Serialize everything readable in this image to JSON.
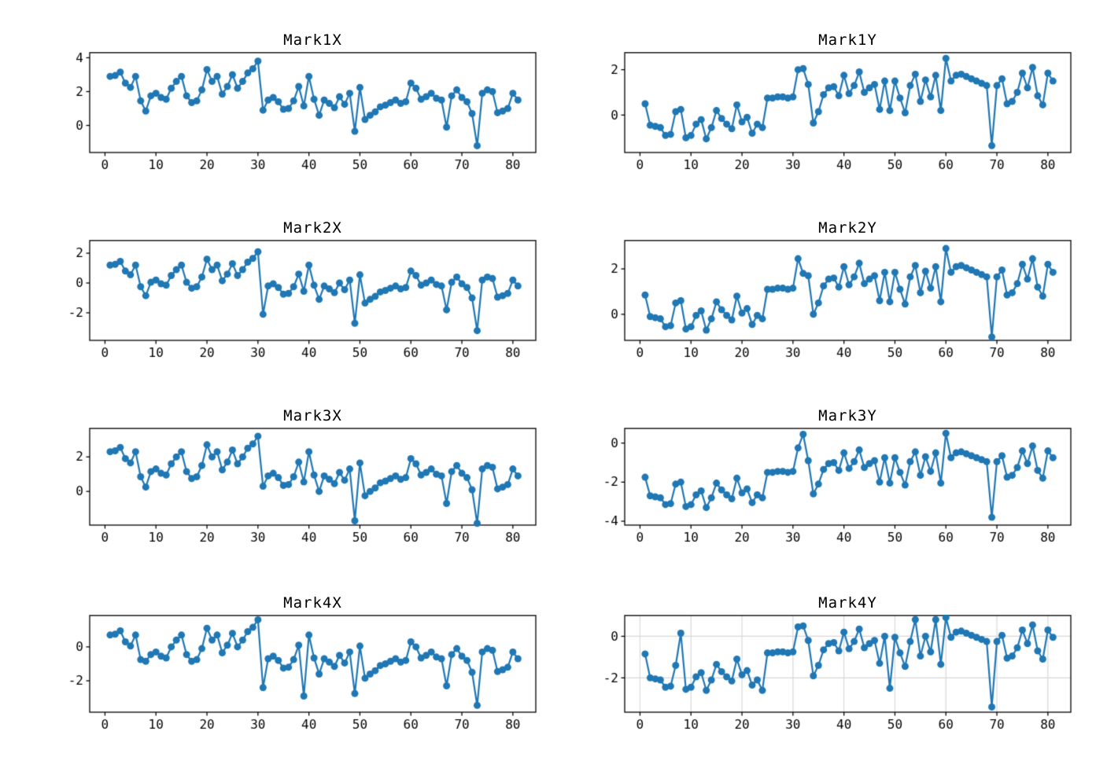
{
  "page": {
    "background": "#ffffff"
  },
  "chart_data": {
    "type": "line",
    "marker": "circle",
    "line_color": "#1f77b4",
    "axis_color": "#000000",
    "grid_color": "#d8d8d8",
    "x_ticks": [
      0,
      10,
      20,
      30,
      40,
      50,
      60,
      70,
      80
    ],
    "x_lim": [
      -3,
      84.5
    ],
    "x_start": 1,
    "x_step": 1,
    "legend": "none",
    "charts": [
      {
        "title": "Mark1X",
        "y_ticks": [
          0,
          2,
          4
        ],
        "y_lim": [
          -1.6,
          4.3
        ],
        "grid": false,
        "values": [
          2.9,
          2.95,
          3.15,
          2.5,
          2.25,
          2.9,
          1.45,
          0.85,
          1.75,
          1.9,
          1.65,
          1.55,
          2.2,
          2.6,
          2.9,
          1.75,
          1.35,
          1.45,
          2.1,
          3.3,
          2.6,
          2.9,
          1.85,
          2.3,
          3.0,
          2.2,
          2.6,
          3.1,
          3.35,
          3.8,
          0.9,
          1.5,
          1.65,
          1.4,
          0.95,
          1.0,
          1.45,
          2.3,
          1.15,
          2.9,
          1.55,
          0.6,
          1.5,
          1.3,
          1.05,
          1.7,
          1.25,
          1.9,
          -0.35,
          2.25,
          0.35,
          0.6,
          0.8,
          1.1,
          1.2,
          1.35,
          1.5,
          1.3,
          1.4,
          2.5,
          2.2,
          1.55,
          1.7,
          1.9,
          1.6,
          1.5,
          -0.1,
          1.75,
          2.1,
          1.65,
          1.4,
          0.7,
          -1.2,
          1.9,
          2.1,
          2.0,
          0.75,
          0.85,
          1.0,
          1.9,
          1.5
        ]
      },
      {
        "title": "Mark1Y",
        "y_ticks": [
          0,
          2
        ],
        "y_lim": [
          -1.65,
          2.75
        ],
        "grid": false,
        "values": [
          0.5,
          -0.45,
          -0.5,
          -0.55,
          -0.9,
          -0.85,
          0.15,
          0.25,
          -1.0,
          -0.9,
          -0.4,
          -0.2,
          -1.05,
          -0.55,
          0.2,
          -0.15,
          -0.4,
          -0.6,
          0.45,
          -0.3,
          -0.1,
          -0.8,
          -0.4,
          -0.55,
          0.75,
          0.75,
          0.8,
          0.8,
          0.75,
          0.8,
          2.0,
          2.05,
          1.35,
          -0.35,
          0.15,
          0.9,
          1.2,
          1.25,
          0.85,
          1.75,
          0.95,
          1.3,
          1.9,
          1.0,
          1.2,
          1.35,
          0.25,
          1.5,
          0.2,
          1.5,
          0.75,
          0.1,
          1.3,
          1.8,
          0.6,
          1.55,
          0.8,
          1.75,
          0.2,
          2.5,
          1.5,
          1.75,
          1.8,
          1.7,
          1.6,
          1.5,
          1.4,
          1.3,
          -1.35,
          1.3,
          1.6,
          0.5,
          0.6,
          1.0,
          1.85,
          1.2,
          2.1,
          0.85,
          0.45,
          1.85,
          1.5
        ]
      },
      {
        "title": "Mark2X",
        "y_ticks": [
          -2,
          0,
          2
        ],
        "y_lim": [
          -3.85,
          2.85
        ],
        "grid": false,
        "values": [
          1.2,
          1.25,
          1.45,
          0.8,
          0.55,
          1.2,
          -0.25,
          -0.85,
          0.05,
          0.2,
          -0.05,
          -0.15,
          0.5,
          0.9,
          1.2,
          0.05,
          -0.35,
          -0.25,
          0.4,
          1.6,
          0.9,
          1.2,
          0.15,
          0.6,
          1.3,
          0.5,
          0.9,
          1.4,
          1.65,
          2.1,
          -2.1,
          -0.2,
          -0.05,
          -0.3,
          -0.75,
          -0.7,
          -0.25,
          0.6,
          -0.55,
          1.2,
          -0.15,
          -1.1,
          -0.2,
          -0.4,
          -0.65,
          0.0,
          -0.45,
          0.2,
          -2.7,
          0.55,
          -1.35,
          -1.1,
          -0.9,
          -0.6,
          -0.5,
          -0.35,
          -0.2,
          -0.4,
          -0.3,
          0.8,
          0.5,
          -0.15,
          0.0,
          0.2,
          -0.1,
          -0.2,
          -1.8,
          0.05,
          0.4,
          -0.05,
          -0.3,
          -1.0,
          -3.2,
          0.2,
          0.4,
          0.3,
          -0.95,
          -0.85,
          -0.7,
          0.2,
          -0.2
        ]
      },
      {
        "title": "Mark2Y",
        "y_ticks": [
          0,
          2
        ],
        "y_lim": [
          -1.15,
          3.25
        ],
        "grid": false,
        "values": [
          0.85,
          -0.1,
          -0.15,
          -0.2,
          -0.55,
          -0.5,
          0.5,
          0.6,
          -0.65,
          -0.55,
          -0.05,
          0.15,
          -0.7,
          -0.2,
          0.55,
          0.2,
          -0.05,
          -0.25,
          0.8,
          0.05,
          0.25,
          -0.45,
          -0.05,
          -0.2,
          1.1,
          1.1,
          1.15,
          1.15,
          1.1,
          1.15,
          2.45,
          1.8,
          1.7,
          0.0,
          0.5,
          1.25,
          1.55,
          1.6,
          1.2,
          2.1,
          1.3,
          1.65,
          2.25,
          1.35,
          1.55,
          1.7,
          0.6,
          1.85,
          0.55,
          1.85,
          1.1,
          0.45,
          1.65,
          2.15,
          0.95,
          1.9,
          1.15,
          2.1,
          0.55,
          2.9,
          1.85,
          2.1,
          2.15,
          2.05,
          1.95,
          1.85,
          1.75,
          1.65,
          -1.0,
          1.65,
          1.95,
          0.85,
          0.95,
          1.35,
          2.2,
          1.55,
          2.45,
          1.2,
          0.8,
          2.2,
          1.85
        ]
      },
      {
        "title": "Mark3X",
        "y_ticks": [
          0,
          2
        ],
        "y_lim": [
          -1.95,
          3.65
        ],
        "grid": false,
        "values": [
          2.3,
          2.35,
          2.55,
          1.9,
          1.65,
          2.3,
          0.85,
          0.25,
          1.15,
          1.3,
          1.05,
          0.95,
          1.6,
          2.0,
          2.3,
          1.15,
          0.75,
          0.85,
          1.5,
          2.7,
          2.0,
          2.3,
          1.25,
          1.7,
          2.4,
          1.6,
          2.0,
          2.5,
          2.75,
          3.2,
          0.3,
          0.9,
          1.05,
          0.8,
          0.35,
          0.4,
          0.85,
          1.7,
          0.55,
          2.3,
          0.95,
          0.0,
          0.9,
          0.7,
          0.45,
          1.1,
          0.65,
          1.3,
          -1.7,
          1.65,
          -0.25,
          0.0,
          0.2,
          0.5,
          0.6,
          0.75,
          0.9,
          0.7,
          0.8,
          1.9,
          1.6,
          0.95,
          1.1,
          1.3,
          1.0,
          0.9,
          -0.7,
          1.15,
          1.5,
          1.05,
          0.8,
          0.1,
          -1.85,
          1.3,
          1.5,
          1.4,
          0.15,
          0.25,
          0.4,
          1.3,
          0.9
        ]
      },
      {
        "title": "Mark3Y",
        "y_ticks": [
          -4,
          -2,
          0
        ],
        "y_lim": [
          -4.2,
          0.75
        ],
        "grid": false,
        "values": [
          -1.75,
          -2.7,
          -2.75,
          -2.8,
          -3.15,
          -3.1,
          -2.1,
          -2.0,
          -3.25,
          -3.15,
          -2.65,
          -2.45,
          -3.3,
          -2.8,
          -2.05,
          -2.4,
          -2.65,
          -2.85,
          -1.8,
          -2.55,
          -2.35,
          -3.05,
          -2.65,
          -2.8,
          -1.5,
          -1.5,
          -1.45,
          -1.45,
          -1.5,
          -1.45,
          -0.25,
          0.45,
          -0.9,
          -2.6,
          -2.1,
          -1.35,
          -1.05,
          -1.0,
          -1.4,
          -0.5,
          -1.3,
          -0.95,
          -0.35,
          -1.25,
          -1.05,
          -0.9,
          -2.0,
          -0.75,
          -2.05,
          -0.75,
          -1.5,
          -2.15,
          -0.95,
          -0.45,
          -1.65,
          -0.7,
          -1.45,
          -0.5,
          -2.05,
          0.5,
          -0.75,
          -0.5,
          -0.45,
          -0.55,
          -0.65,
          -0.75,
          -0.85,
          -0.95,
          -3.8,
          -0.95,
          -0.65,
          -1.75,
          -1.65,
          -1.25,
          -0.4,
          -1.05,
          -0.15,
          -1.4,
          -1.8,
          -0.4,
          -0.75
        ]
      },
      {
        "title": "Mark4X",
        "y_ticks": [
          -2,
          0
        ],
        "y_lim": [
          -3.85,
          1.85
        ],
        "grid": false,
        "values": [
          0.7,
          0.75,
          0.95,
          0.3,
          0.05,
          0.7,
          -0.75,
          -0.85,
          -0.45,
          -0.3,
          -0.55,
          -0.65,
          0.0,
          0.4,
          0.7,
          -0.45,
          -0.85,
          -0.75,
          -0.1,
          1.1,
          0.4,
          0.7,
          -0.35,
          0.1,
          0.8,
          0.0,
          0.4,
          0.9,
          1.15,
          1.6,
          -2.4,
          -0.7,
          -0.55,
          -0.8,
          -1.25,
          -1.2,
          -0.75,
          0.1,
          -2.9,
          0.7,
          -0.65,
          -1.6,
          -0.7,
          -0.9,
          -1.15,
          -0.5,
          -0.95,
          -0.3,
          -2.75,
          0.05,
          -1.85,
          -1.6,
          -1.4,
          -1.1,
          -1.0,
          -0.85,
          -0.7,
          -0.9,
          -0.8,
          0.3,
          0.0,
          -0.65,
          -0.5,
          -0.3,
          -0.6,
          -0.7,
          -2.3,
          -0.45,
          -0.1,
          -0.55,
          -0.8,
          -1.5,
          -3.45,
          -0.3,
          -0.1,
          -0.2,
          -1.45,
          -1.35,
          -1.2,
          -0.3,
          -0.7
        ]
      },
      {
        "title": "Mark4Y",
        "y_ticks": [
          -2,
          0
        ],
        "y_lim": [
          -3.65,
          1.0
        ],
        "grid": true,
        "values": [
          -0.85,
          -2.0,
          -2.05,
          -2.1,
          -2.45,
          -2.4,
          -1.4,
          0.15,
          -2.55,
          -2.45,
          -1.95,
          -1.75,
          -2.6,
          -2.1,
          -1.35,
          -1.7,
          -1.95,
          -2.15,
          -1.1,
          -1.85,
          -1.65,
          -2.35,
          -2.1,
          -2.6,
          -0.8,
          -0.8,
          -0.75,
          -0.75,
          -0.8,
          -0.75,
          0.45,
          0.5,
          -0.2,
          -1.9,
          -1.4,
          -0.65,
          -0.35,
          -0.3,
          -0.7,
          0.2,
          -0.6,
          -0.25,
          0.35,
          -0.55,
          -0.35,
          -0.2,
          -1.3,
          0.0,
          -2.5,
          -0.05,
          -0.8,
          -1.45,
          -0.25,
          0.8,
          -0.95,
          0.0,
          -0.75,
          0.8,
          -1.35,
          0.9,
          -0.05,
          0.2,
          0.25,
          0.15,
          0.05,
          -0.05,
          -0.15,
          -0.25,
          -3.4,
          -0.25,
          0.05,
          -1.05,
          -0.95,
          -0.55,
          0.3,
          -0.35,
          0.55,
          -0.7,
          -1.1,
          0.3,
          -0.05
        ]
      }
    ]
  }
}
